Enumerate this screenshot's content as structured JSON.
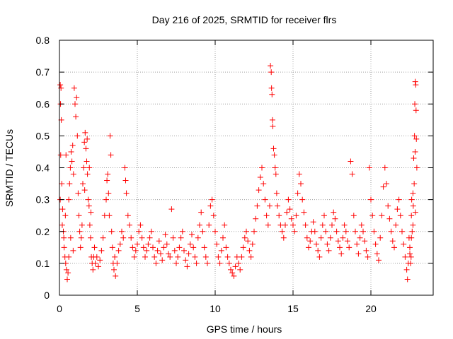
{
  "chart_data": {
    "type": "scatter",
    "title": "Day 216 of 2025, SRMTID for receiver flrs",
    "xlabel": "GPS time / hours",
    "ylabel": "SRMTID / TECUs",
    "xlim": [
      0,
      24
    ],
    "ylim": [
      0,
      0.8
    ],
    "grid": true,
    "marker": "+",
    "color": "#ff0000",
    "x_ticks": [
      0,
      5,
      10,
      15,
      20
    ],
    "x_tick_labels": [
      "0",
      "5",
      "10",
      "15",
      "20"
    ],
    "y_ticks": [
      0,
      0.1,
      0.2,
      0.3,
      0.4,
      0.5,
      0.6,
      0.7,
      0.8
    ],
    "y_tick_labels": [
      "0",
      "0.1",
      "0.2",
      "0.3",
      "0.4",
      "0.5",
      "0.6",
      "0.7",
      "0.8"
    ],
    "series": [
      {
        "name": "SRMTID",
        "points": [
          [
            0.05,
            0.66
          ],
          [
            0.07,
            0.6
          ],
          [
            0.1,
            0.65
          ],
          [
            0.12,
            0.55
          ],
          [
            0.08,
            0.44
          ],
          [
            0.15,
            0.35
          ],
          [
            0.05,
            0.3
          ],
          [
            0.2,
            0.27
          ],
          [
            0.25,
            0.2
          ],
          [
            0.3,
            0.15
          ],
          [
            0.35,
            0.12
          ],
          [
            0.4,
            0.1
          ],
          [
            0.45,
            0.08
          ],
          [
            0.5,
            0.05
          ],
          [
            0.55,
            0.07
          ],
          [
            0.6,
            0.12
          ],
          [
            0.18,
            0.22
          ],
          [
            0.28,
            0.18
          ],
          [
            0.38,
            0.25
          ],
          [
            0.42,
            0.44
          ],
          [
            0.6,
            0.3
          ],
          [
            0.65,
            0.35
          ],
          [
            0.7,
            0.4
          ],
          [
            0.75,
            0.45
          ],
          [
            0.8,
            0.42
          ],
          [
            0.85,
            0.47
          ],
          [
            0.9,
            0.38
          ],
          [
            0.95,
            0.65
          ],
          [
            1.0,
            0.6
          ],
          [
            1.05,
            0.56
          ],
          [
            1.1,
            0.62
          ],
          [
            1.15,
            0.5
          ],
          [
            1.2,
            0.32
          ],
          [
            1.25,
            0.25
          ],
          [
            1.3,
            0.2
          ],
          [
            1.35,
            0.15
          ],
          [
            1.4,
            0.18
          ],
          [
            1.45,
            0.22
          ],
          [
            0.72,
            0.18
          ],
          [
            0.88,
            0.14
          ],
          [
            1.5,
            0.35
          ],
          [
            1.55,
            0.4
          ],
          [
            1.6,
            0.48
          ],
          [
            1.65,
            0.51
          ],
          [
            1.7,
            0.46
          ],
          [
            1.75,
            0.42
          ],
          [
            1.8,
            0.38
          ],
          [
            1.85,
            0.3
          ],
          [
            1.9,
            0.28
          ],
          [
            1.95,
            0.22
          ],
          [
            2.0,
            0.18
          ],
          [
            2.05,
            0.12
          ],
          [
            2.1,
            0.1
          ],
          [
            2.15,
            0.08
          ],
          [
            2.2,
            0.12
          ],
          [
            2.25,
            0.15
          ],
          [
            1.62,
            0.33
          ],
          [
            1.78,
            0.49
          ],
          [
            1.92,
            0.4
          ],
          [
            2.02,
            0.26
          ],
          [
            2.3,
            0.1
          ],
          [
            2.4,
            0.12
          ],
          [
            2.5,
            0.09
          ],
          [
            2.6,
            0.11
          ],
          [
            2.7,
            0.14
          ],
          [
            2.8,
            0.18
          ],
          [
            2.9,
            0.25
          ],
          [
            3.0,
            0.3
          ],
          [
            3.05,
            0.36
          ],
          [
            3.1,
            0.38
          ],
          [
            3.15,
            0.32
          ],
          [
            3.2,
            0.25
          ],
          [
            3.25,
            0.5
          ],
          [
            3.3,
            0.44
          ],
          [
            3.35,
            0.2
          ],
          [
            3.4,
            0.15
          ],
          [
            3.45,
            0.1
          ],
          [
            3.5,
            0.08
          ],
          [
            3.55,
            0.12
          ],
          [
            3.6,
            0.06
          ],
          [
            3.7,
            0.1
          ],
          [
            3.8,
            0.14
          ],
          [
            3.9,
            0.16
          ],
          [
            4.0,
            0.2
          ],
          [
            4.1,
            0.18
          ],
          [
            4.2,
            0.4
          ],
          [
            4.25,
            0.36
          ],
          [
            4.3,
            0.32
          ],
          [
            4.4,
            0.25
          ],
          [
            4.5,
            0.22
          ],
          [
            4.6,
            0.18
          ],
          [
            4.7,
            0.15
          ],
          [
            4.8,
            0.12
          ],
          [
            4.9,
            0.14
          ],
          [
            5.0,
            0.16
          ],
          [
            5.1,
            0.2
          ],
          [
            5.2,
            0.22
          ],
          [
            5.3,
            0.18
          ],
          [
            5.4,
            0.15
          ],
          [
            5.5,
            0.12
          ],
          [
            5.6,
            0.14
          ],
          [
            5.7,
            0.16
          ],
          [
            5.8,
            0.18
          ],
          [
            5.9,
            0.2
          ],
          [
            6.0,
            0.15
          ],
          [
            6.1,
            0.12
          ],
          [
            6.2,
            0.1
          ],
          [
            6.3,
            0.14
          ],
          [
            6.4,
            0.17
          ],
          [
            6.5,
            0.13
          ],
          [
            6.6,
            0.11
          ],
          [
            6.7,
            0.15
          ],
          [
            6.8,
            0.19
          ],
          [
            6.9,
            0.16
          ],
          [
            7.0,
            0.13
          ],
          [
            7.1,
            0.12
          ],
          [
            7.2,
            0.27
          ],
          [
            7.3,
            0.18
          ],
          [
            7.4,
            0.14
          ],
          [
            7.5,
            0.1
          ],
          [
            7.6,
            0.12
          ],
          [
            7.7,
            0.15
          ],
          [
            7.8,
            0.18
          ],
          [
            7.9,
            0.2
          ],
          [
            8.0,
            0.14
          ],
          [
            8.1,
            0.11
          ],
          [
            8.2,
            0.09
          ],
          [
            8.3,
            0.13
          ],
          [
            8.4,
            0.16
          ],
          [
            8.5,
            0.19
          ],
          [
            8.6,
            0.15
          ],
          [
            8.7,
            0.12
          ],
          [
            8.8,
            0.1
          ],
          [
            8.9,
            0.18
          ],
          [
            9.0,
            0.22
          ],
          [
            9.1,
            0.26
          ],
          [
            9.2,
            0.2
          ],
          [
            9.3,
            0.15
          ],
          [
            9.4,
            0.12
          ],
          [
            9.5,
            0.1
          ],
          [
            9.6,
            0.22
          ],
          [
            9.7,
            0.28
          ],
          [
            9.8,
            0.3
          ],
          [
            9.9,
            0.25
          ],
          [
            10.0,
            0.2
          ],
          [
            10.1,
            0.16
          ],
          [
            10.2,
            0.12
          ],
          [
            10.3,
            0.1
          ],
          [
            10.4,
            0.14
          ],
          [
            10.5,
            0.18
          ],
          [
            10.6,
            0.22
          ],
          [
            10.7,
            0.15
          ],
          [
            10.8,
            0.12
          ],
          [
            10.9,
            0.1
          ],
          [
            11.0,
            0.08
          ],
          [
            11.1,
            0.07
          ],
          [
            11.2,
            0.06
          ],
          [
            11.3,
            0.09
          ],
          [
            11.4,
            0.12
          ],
          [
            11.5,
            0.1
          ],
          [
            11.6,
            0.08
          ],
          [
            11.7,
            0.12
          ],
          [
            11.8,
            0.15
          ],
          [
            11.9,
            0.18
          ],
          [
            12.0,
            0.2
          ],
          [
            12.1,
            0.17
          ],
          [
            12.2,
            0.14
          ],
          [
            12.3,
            0.12
          ],
          [
            12.4,
            0.16
          ],
          [
            12.5,
            0.2
          ],
          [
            12.6,
            0.24
          ],
          [
            12.7,
            0.28
          ],
          [
            12.8,
            0.33
          ],
          [
            12.9,
            0.37
          ],
          [
            13.0,
            0.4
          ],
          [
            13.1,
            0.35
          ],
          [
            13.2,
            0.3
          ],
          [
            13.3,
            0.25
          ],
          [
            13.4,
            0.22
          ],
          [
            13.5,
            0.28
          ],
          [
            13.55,
            0.72
          ],
          [
            13.6,
            0.7
          ],
          [
            13.62,
            0.65
          ],
          [
            13.65,
            0.63
          ],
          [
            13.68,
            0.55
          ],
          [
            13.7,
            0.53
          ],
          [
            13.75,
            0.46
          ],
          [
            13.8,
            0.44
          ],
          [
            13.85,
            0.4
          ],
          [
            13.9,
            0.38
          ],
          [
            13.95,
            0.32
          ],
          [
            14.0,
            0.28
          ],
          [
            14.1,
            0.25
          ],
          [
            14.2,
            0.22
          ],
          [
            14.3,
            0.2
          ],
          [
            14.4,
            0.18
          ],
          [
            14.5,
            0.22
          ],
          [
            14.6,
            0.26
          ],
          [
            14.7,
            0.3
          ],
          [
            14.8,
            0.27
          ],
          [
            14.9,
            0.24
          ],
          [
            15.0,
            0.22
          ],
          [
            15.1,
            0.2
          ],
          [
            15.2,
            0.25
          ],
          [
            15.3,
            0.32
          ],
          [
            15.4,
            0.38
          ],
          [
            15.5,
            0.35
          ],
          [
            15.6,
            0.3
          ],
          [
            15.7,
            0.26
          ],
          [
            15.8,
            0.22
          ],
          [
            15.9,
            0.18
          ],
          [
            16.0,
            0.15
          ],
          [
            16.1,
            0.17
          ],
          [
            16.2,
            0.2
          ],
          [
            16.3,
            0.23
          ],
          [
            16.4,
            0.2
          ],
          [
            16.5,
            0.16
          ],
          [
            16.6,
            0.14
          ],
          [
            16.7,
            0.12
          ],
          [
            16.8,
            0.18
          ],
          [
            16.9,
            0.22
          ],
          [
            17.0,
            0.25
          ],
          [
            17.1,
            0.2
          ],
          [
            17.2,
            0.16
          ],
          [
            17.3,
            0.14
          ],
          [
            17.4,
            0.18
          ],
          [
            17.5,
            0.22
          ],
          [
            17.6,
            0.26
          ],
          [
            17.7,
            0.24
          ],
          [
            17.8,
            0.2
          ],
          [
            17.9,
            0.17
          ],
          [
            18.0,
            0.15
          ],
          [
            18.1,
            0.13
          ],
          [
            18.2,
            0.18
          ],
          [
            18.3,
            0.22
          ],
          [
            18.4,
            0.2
          ],
          [
            18.5,
            0.17
          ],
          [
            18.6,
            0.15
          ],
          [
            18.7,
            0.42
          ],
          [
            18.8,
            0.38
          ],
          [
            18.9,
            0.25
          ],
          [
            19.0,
            0.2
          ],
          [
            19.1,
            0.16
          ],
          [
            19.2,
            0.13
          ],
          [
            19.3,
            0.18
          ],
          [
            19.4,
            0.22
          ],
          [
            19.5,
            0.2
          ],
          [
            19.6,
            0.17
          ],
          [
            19.7,
            0.14
          ],
          [
            19.8,
            0.12
          ],
          [
            19.9,
            0.4
          ],
          [
            20.0,
            0.3
          ],
          [
            20.1,
            0.25
          ],
          [
            20.2,
            0.2
          ],
          [
            20.3,
            0.16
          ],
          [
            20.4,
            0.13
          ],
          [
            20.5,
            0.11
          ],
          [
            20.6,
            0.18
          ],
          [
            20.7,
            0.25
          ],
          [
            20.8,
            0.34
          ],
          [
            20.9,
            0.4
          ],
          [
            21.0,
            0.35
          ],
          [
            21.1,
            0.28
          ],
          [
            21.2,
            0.24
          ],
          [
            21.3,
            0.2
          ],
          [
            21.4,
            0.17
          ],
          [
            21.5,
            0.15
          ],
          [
            21.6,
            0.22
          ],
          [
            21.7,
            0.27
          ],
          [
            21.8,
            0.3
          ],
          [
            21.9,
            0.25
          ],
          [
            22.0,
            0.2
          ],
          [
            22.1,
            0.16
          ],
          [
            22.2,
            0.12
          ],
          [
            22.3,
            0.08
          ],
          [
            22.35,
            0.05
          ],
          [
            22.4,
            0.1
          ],
          [
            22.5,
            0.15
          ],
          [
            22.6,
            0.25
          ],
          [
            22.7,
            0.32
          ],
          [
            22.75,
            0.43
          ],
          [
            22.8,
            0.5
          ],
          [
            22.82,
            0.6
          ],
          [
            22.85,
            0.67
          ],
          [
            22.88,
            0.66
          ],
          [
            22.9,
            0.58
          ],
          [
            22.92,
            0.49
          ],
          [
            22.95,
            0.4
          ],
          [
            22.72,
            0.28
          ],
          [
            22.6,
            0.18
          ],
          [
            22.5,
            0.13
          ],
          [
            22.55,
            0.1
          ],
          [
            22.65,
            0.2
          ],
          [
            22.78,
            0.35
          ],
          [
            22.84,
            0.45
          ],
          [
            22.7,
            0.22
          ],
          [
            22.45,
            0.18
          ],
          [
            22.62,
            0.3
          ],
          [
            22.58,
            0.12
          ],
          [
            22.86,
            0.26
          ]
        ]
      }
    ]
  }
}
